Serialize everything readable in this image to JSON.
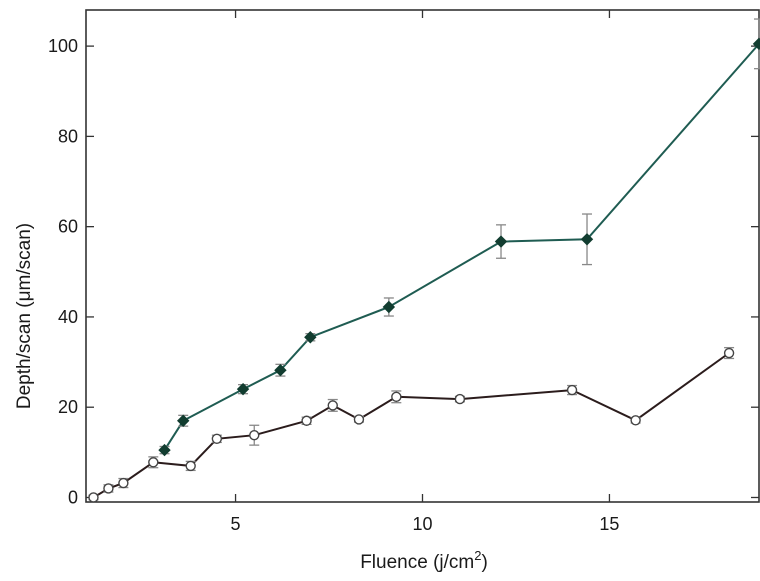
{
  "chart_data": {
    "type": "line",
    "title": "",
    "xlabel": "Fluence (j/cm",
    "xlabel_superscript": "2",
    "xlabel_suffix": ")",
    "ylabel": "Depth/scan (μm/scan)",
    "xlim": [
      1,
      19
    ],
    "ylim": [
      -1,
      108
    ],
    "xticks": [
      5,
      10,
      15
    ],
    "yticks": [
      0,
      20,
      40,
      60,
      80,
      100
    ],
    "grid": false,
    "legend": "none",
    "series": [
      {
        "marker": "diamond",
        "color": "#1f5c52",
        "marker_color": "#123d30",
        "points": [
          {
            "x": 3.1,
            "y": 10.5,
            "err": 0.8
          },
          {
            "x": 3.6,
            "y": 17.0,
            "err": 1.2
          },
          {
            "x": 5.2,
            "y": 24.0,
            "err": 1.0
          },
          {
            "x": 6.2,
            "y": 28.2,
            "err": 1.3
          },
          {
            "x": 7.0,
            "y": 35.5,
            "err": 0.8
          },
          {
            "x": 9.1,
            "y": 42.2,
            "err": 2.0
          },
          {
            "x": 12.1,
            "y": 56.7,
            "err": 3.7
          },
          {
            "x": 14.4,
            "y": 57.2,
            "err": 5.6
          },
          {
            "x": 19.0,
            "y": 100.5,
            "err": 5.5
          }
        ]
      },
      {
        "marker": "circle",
        "color": "#2b1c1c",
        "marker_color": "#444444",
        "points": [
          {
            "x": 1.2,
            "y": 0.0,
            "err": 0.5
          },
          {
            "x": 1.6,
            "y": 2.0,
            "err": 0.8
          },
          {
            "x": 2.0,
            "y": 3.2,
            "err": 1.0
          },
          {
            "x": 2.8,
            "y": 7.8,
            "err": 1.2
          },
          {
            "x": 3.8,
            "y": 7.0,
            "err": 1.0
          },
          {
            "x": 4.5,
            "y": 13.0,
            "err": 0.8
          },
          {
            "x": 5.5,
            "y": 13.8,
            "err": 2.2
          },
          {
            "x": 6.9,
            "y": 17.0,
            "err": 0.8
          },
          {
            "x": 7.6,
            "y": 20.4,
            "err": 1.3
          },
          {
            "x": 8.3,
            "y": 17.3,
            "err": 0.6
          },
          {
            "x": 9.3,
            "y": 22.3,
            "err": 1.3
          },
          {
            "x": 11.0,
            "y": 21.8,
            "err": 0.6
          },
          {
            "x": 14.0,
            "y": 23.8,
            "err": 1.0
          },
          {
            "x": 15.7,
            "y": 17.1,
            "err": 0.6
          },
          {
            "x": 18.2,
            "y": 32.0,
            "err": 1.2
          }
        ]
      }
    ]
  }
}
